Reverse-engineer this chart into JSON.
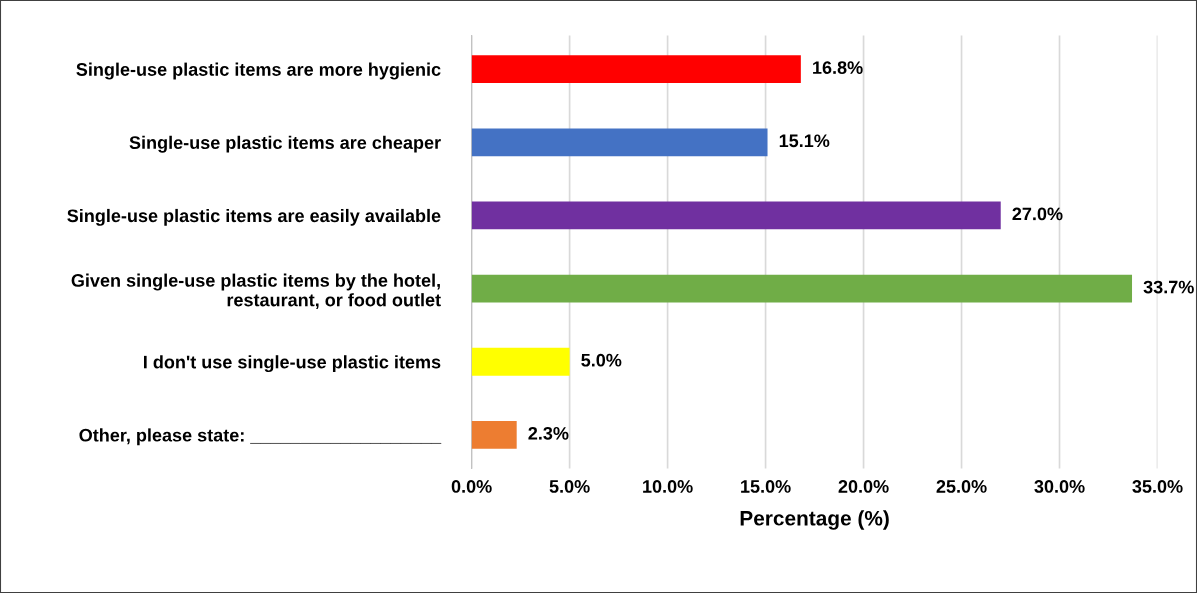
{
  "chart_data": {
    "type": "bar",
    "orientation": "horizontal",
    "xlabel": "Percentage (%)",
    "categories": [
      "Single-use plastic items are more hygienic",
      "Single-use plastic items are cheaper",
      "Single-use plastic items are easily available",
      "Given single-use plastic items by the hotel,\nrestaurant, or food outlet",
      "I don't use single-use plastic items",
      "Other, please state: ___________________"
    ],
    "values": [
      16.8,
      15.1,
      27.0,
      33.7,
      5.0,
      2.3
    ],
    "colors": [
      "#ff0000",
      "#4472c4",
      "#7030a0",
      "#70ad47",
      "#ffff00",
      "#ed7d31"
    ],
    "value_labels": [
      "16.8%",
      "15.1%",
      "27.0%",
      "33.7%",
      "5.0%",
      "2.3%"
    ],
    "xlim": [
      0,
      35
    ],
    "xticks": [
      {
        "value": 0,
        "label": "0.0%"
      },
      {
        "value": 5,
        "label": "5.0%"
      },
      {
        "value": 10,
        "label": "10.0%"
      },
      {
        "value": 15,
        "label": "15.0%"
      },
      {
        "value": 20,
        "label": "20.0%"
      },
      {
        "value": 25,
        "label": "25.0%"
      },
      {
        "value": 30,
        "label": "30.0%"
      },
      {
        "value": 35,
        "label": "35.0%"
      }
    ],
    "grid": "x"
  }
}
